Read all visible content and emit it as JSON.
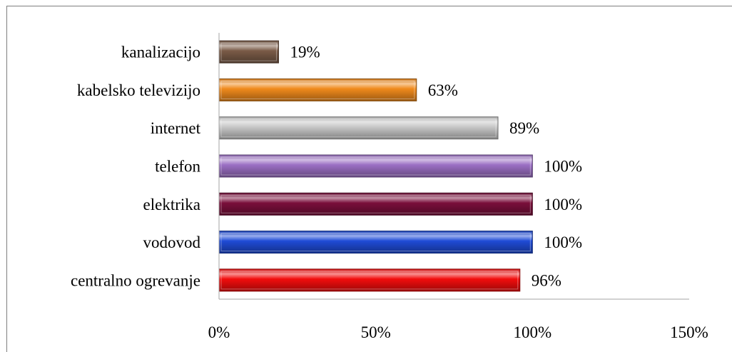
{
  "chart_data": {
    "type": "bar",
    "orientation": "horizontal",
    "title": "",
    "categories": [
      "kanalizacijo",
      "kabelsko televizijo",
      "internet",
      "telefon",
      "elektrika",
      "vodovod",
      "centralno ogrevanje"
    ],
    "values": [
      19,
      63,
      89,
      100,
      100,
      100,
      96
    ],
    "data_labels": [
      "19%",
      "63%",
      "89%",
      "100%",
      "100%",
      "100%",
      "96%"
    ],
    "xlim": [
      0,
      150
    ],
    "x_ticks": [
      "0%",
      "50%",
      "100%",
      "150%"
    ],
    "x_tick_values": [
      0,
      50,
      100,
      150
    ],
    "grid": false,
    "legend": "none",
    "bar_colors": [
      "#7a5b47",
      "#f08a1c",
      "#c8c8c8",
      "#9b6fc4",
      "#7a0f3b",
      "#1f4bd6",
      "#f20d0d"
    ]
  }
}
